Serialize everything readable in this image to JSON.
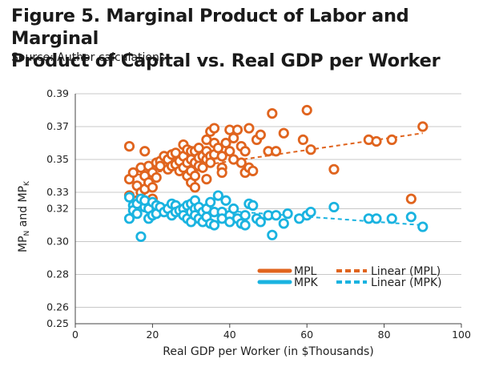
{
  "header": {
    "title_line1": "Figure 5. Marginal Product of Labor and Marginal",
    "title_line2": "Product of Capital vs. Real GDP per Worker",
    "subtitle": "Source: Author calculations"
  },
  "chart_data": {
    "type": "scatter",
    "xlabel": "Real GDP per Worker (in $Thousands)",
    "ylabel": {
      "main": "MP",
      "sub1": "N",
      "mid": " and MP",
      "sub2": "K"
    },
    "xlim": [
      0,
      100
    ],
    "ylim": [
      0.25,
      0.39
    ],
    "x_ticks": [
      0,
      20,
      40,
      60,
      80,
      100
    ],
    "y_ticks": [
      0.25,
      0.26,
      0.28,
      0.3,
      0.32,
      0.33,
      0.35,
      0.37,
      0.39
    ],
    "y_tick_labels": [
      "0.25",
      "0.26",
      "0.28",
      "0.30",
      "0.32",
      "0.33",
      "0.35",
      "0.37",
      "0.39"
    ],
    "grid": "horizontal",
    "legend_position": "bottom-right",
    "legend": [
      {
        "label": "MPL",
        "kind": "marker",
        "series": "MPL"
      },
      {
        "label": "Linear (MPL)",
        "kind": "trend",
        "series": "MPL"
      },
      {
        "label": "MPK",
        "kind": "marker",
        "series": "MPK"
      },
      {
        "label": "Linear (MPK)",
        "kind": "trend",
        "series": "MPK"
      }
    ],
    "series": [
      {
        "name": "MPL",
        "color": "#e0641e",
        "trend": {
          "x": [
            14,
            90
          ],
          "y": [
            0.34,
            0.366
          ]
        },
        "points": [
          [
            14,
            0.358
          ],
          [
            14,
            0.338
          ],
          [
            14,
            0.328
          ],
          [
            15,
            0.342
          ],
          [
            16,
            0.334
          ],
          [
            16,
            0.325
          ],
          [
            17,
            0.345
          ],
          [
            17,
            0.33
          ],
          [
            18,
            0.355
          ],
          [
            18,
            0.34
          ],
          [
            18,
            0.332
          ],
          [
            19,
            0.346
          ],
          [
            19,
            0.336
          ],
          [
            20,
            0.326
          ],
          [
            20,
            0.342
          ],
          [
            20,
            0.333
          ],
          [
            21,
            0.348
          ],
          [
            21,
            0.339
          ],
          [
            22,
            0.349
          ],
          [
            22,
            0.346
          ],
          [
            23,
            0.352
          ],
          [
            24,
            0.35
          ],
          [
            24,
            0.344
          ],
          [
            25,
            0.346
          ],
          [
            25,
            0.353
          ],
          [
            26,
            0.347
          ],
          [
            26,
            0.354
          ],
          [
            27,
            0.349
          ],
          [
            27,
            0.343
          ],
          [
            28,
            0.359
          ],
          [
            28,
            0.352
          ],
          [
            28,
            0.345
          ],
          [
            29,
            0.356
          ],
          [
            29,
            0.348
          ],
          [
            29,
            0.34
          ],
          [
            30,
            0.355
          ],
          [
            30,
            0.35
          ],
          [
            30,
            0.343
          ],
          [
            30,
            0.336
          ],
          [
            31,
            0.355
          ],
          [
            31,
            0.348
          ],
          [
            31,
            0.34
          ],
          [
            31,
            0.333
          ],
          [
            32,
            0.357
          ],
          [
            32,
            0.351
          ],
          [
            32,
            0.346
          ],
          [
            33,
            0.352
          ],
          [
            33,
            0.345
          ],
          [
            34,
            0.362
          ],
          [
            34,
            0.355
          ],
          [
            34,
            0.35
          ],
          [
            34,
            0.338
          ],
          [
            35,
            0.367
          ],
          [
            35,
            0.352
          ],
          [
            35,
            0.348
          ],
          [
            36,
            0.369
          ],
          [
            36,
            0.36
          ],
          [
            36,
            0.353
          ],
          [
            37,
            0.357
          ],
          [
            38,
            0.352
          ],
          [
            38,
            0.345
          ],
          [
            38,
            0.342
          ],
          [
            39,
            0.36
          ],
          [
            40,
            0.368
          ],
          [
            40,
            0.355
          ],
          [
            41,
            0.35
          ],
          [
            41,
            0.363
          ],
          [
            42,
            0.368
          ],
          [
            43,
            0.358
          ],
          [
            43,
            0.348
          ],
          [
            44,
            0.355
          ],
          [
            44,
            0.342
          ],
          [
            45,
            0.369
          ],
          [
            45,
            0.345
          ],
          [
            46,
            0.343
          ],
          [
            47,
            0.362
          ],
          [
            48,
            0.365
          ],
          [
            50,
            0.355
          ],
          [
            51,
            0.378
          ],
          [
            52,
            0.355
          ],
          [
            54,
            0.366
          ],
          [
            59,
            0.362
          ],
          [
            60,
            0.38
          ],
          [
            61,
            0.356
          ],
          [
            67,
            0.344
          ],
          [
            76,
            0.362
          ],
          [
            78,
            0.361
          ],
          [
            82,
            0.362
          ],
          [
            87,
            0.326
          ],
          [
            90,
            0.37
          ]
        ]
      },
      {
        "name": "MPK",
        "color": "#1ab3e0",
        "trend": {
          "x": [
            14,
            90
          ],
          "y": [
            0.323,
            0.31
          ]
        },
        "points": [
          [
            14,
            0.314
          ],
          [
            14,
            0.327
          ],
          [
            15,
            0.322
          ],
          [
            15,
            0.319
          ],
          [
            16,
            0.323
          ],
          [
            16,
            0.317
          ],
          [
            17,
            0.303
          ],
          [
            17,
            0.326
          ],
          [
            18,
            0.321
          ],
          [
            18,
            0.325
          ],
          [
            19,
            0.314
          ],
          [
            19,
            0.32
          ],
          [
            20,
            0.316
          ],
          [
            20,
            0.324
          ],
          [
            21,
            0.317
          ],
          [
            21,
            0.322
          ],
          [
            22,
            0.321
          ],
          [
            23,
            0.318
          ],
          [
            24,
            0.32
          ],
          [
            25,
            0.323
          ],
          [
            25,
            0.316
          ],
          [
            26,
            0.322
          ],
          [
            26,
            0.318
          ],
          [
            27,
            0.319
          ],
          [
            28,
            0.32
          ],
          [
            28,
            0.316
          ],
          [
            29,
            0.322
          ],
          [
            29,
            0.314
          ],
          [
            30,
            0.323
          ],
          [
            30,
            0.318
          ],
          [
            30,
            0.312
          ],
          [
            31,
            0.325
          ],
          [
            31,
            0.32
          ],
          [
            31,
            0.316
          ],
          [
            32,
            0.321
          ],
          [
            32,
            0.314
          ],
          [
            33,
            0.318
          ],
          [
            33,
            0.312
          ],
          [
            34,
            0.32
          ],
          [
            34,
            0.315
          ],
          [
            35,
            0.324
          ],
          [
            35,
            0.311
          ],
          [
            36,
            0.318
          ],
          [
            36,
            0.31
          ],
          [
            37,
            0.328
          ],
          [
            38,
            0.318
          ],
          [
            38,
            0.314
          ],
          [
            39,
            0.325
          ],
          [
            40,
            0.316
          ],
          [
            40,
            0.312
          ],
          [
            41,
            0.32
          ],
          [
            42,
            0.314
          ],
          [
            43,
            0.311
          ],
          [
            44,
            0.316
          ],
          [
            44,
            0.31
          ],
          [
            45,
            0.323
          ],
          [
            46,
            0.322
          ],
          [
            47,
            0.314
          ],
          [
            48,
            0.312
          ],
          [
            50,
            0.316
          ],
          [
            51,
            0.304
          ],
          [
            52,
            0.316
          ],
          [
            54,
            0.311
          ],
          [
            55,
            0.317
          ],
          [
            58,
            0.314
          ],
          [
            60,
            0.316
          ],
          [
            61,
            0.318
          ],
          [
            67,
            0.321
          ],
          [
            76,
            0.314
          ],
          [
            78,
            0.314
          ],
          [
            82,
            0.314
          ],
          [
            87,
            0.315
          ],
          [
            90,
            0.309
          ]
        ]
      }
    ]
  }
}
